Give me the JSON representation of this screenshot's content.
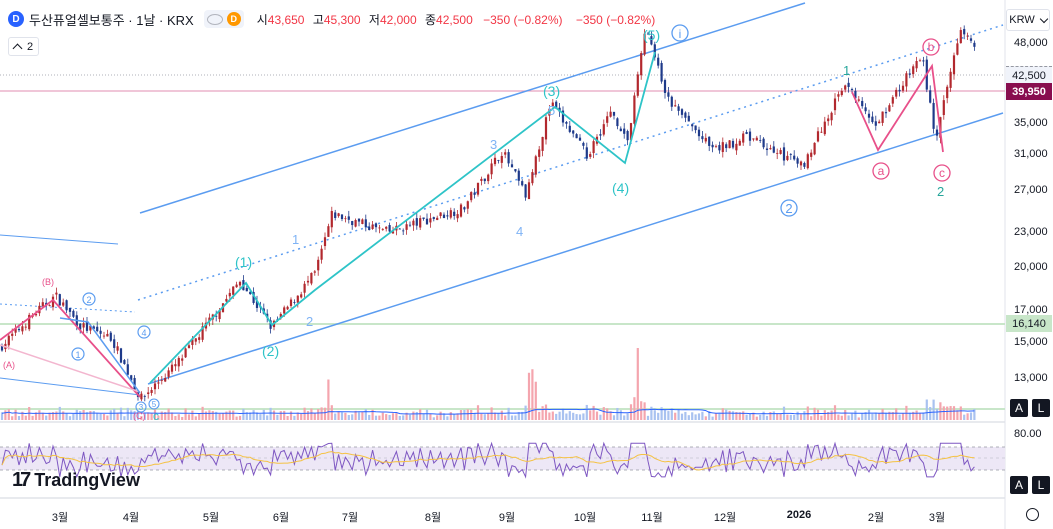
{
  "header": {
    "logo": "D",
    "symbol": "두산퓨얼셀보통주 · 1날 · KRX",
    "badge_letter": "D",
    "open_label": "시",
    "open": "43,650",
    "high_label": "고",
    "high": "45,300",
    "low_label": "저",
    "low": "42,000",
    "close_label": "종",
    "close": "42,500",
    "change": "−350 (−0.82%)",
    "change2": "−350 (−0.82%)"
  },
  "indicator_toggle": {
    "count": "2"
  },
  "currency": "KRW",
  "colors": {
    "up": "#089981",
    "down": "#f23645",
    "candle_up": "#b2282e",
    "candle_down": "#1e3a8a",
    "channel": "#5b9cf0",
    "wave_cyan": "#2ec4c8",
    "wave_pink": "#e8508a"
  },
  "price_axis": [
    "48,000",
    "35,000",
    "31,000",
    "27,000",
    "23,000",
    "20,000",
    "17,000",
    "15,000",
    "13,000"
  ],
  "rsi_axis": "80.00",
  "price_tags": {
    "last": "42,500",
    "marker": "39,950",
    "support": "16,140"
  },
  "time_axis": [
    "3월",
    "4월",
    "5월",
    "6월",
    "7월",
    "8월",
    "9월",
    "10월",
    "11월",
    "12월",
    "2026",
    "2월",
    "3월"
  ],
  "brand": "TradingView",
  "albuttons": [
    "A",
    "L"
  ],
  "chart_data": {
    "type": "candlestick",
    "currency": "KRW",
    "y_scale": "log",
    "ylim": [
      11700,
      51000
    ],
    "approx_close_path": [
      {
        "t": "2025-02-10",
        "p": 15000
      },
      {
        "t": "2025-02-25",
        "p": 17000
      },
      {
        "t": "2025-03-05",
        "p": 18000
      },
      {
        "t": "2025-03-15",
        "p": 16200
      },
      {
        "t": "2025-03-28",
        "p": 15500
      },
      {
        "t": "2025-04-09",
        "p": 12500
      },
      {
        "t": "2025-04-25",
        "p": 14300
      },
      {
        "t": "2025-05-20",
        "p": 19000
      },
      {
        "t": "2025-06-02",
        "p": 16100
      },
      {
        "t": "2025-06-20",
        "p": 19500
      },
      {
        "t": "2025-06-27",
        "p": 24000
      },
      {
        "t": "2025-07-20",
        "p": 22500
      },
      {
        "t": "2025-08-20",
        "p": 24500
      },
      {
        "t": "2025-09-05",
        "p": 30000
      },
      {
        "t": "2025-09-15",
        "p": 25500
      },
      {
        "t": "2025-09-25",
        "p": 35500
      },
      {
        "t": "2025-10-10",
        "p": 29500
      },
      {
        "t": "2025-10-20",
        "p": 34500
      },
      {
        "t": "2025-10-27",
        "p": 31000
      },
      {
        "t": "2025-11-03",
        "p": 46500
      },
      {
        "t": "2025-11-12",
        "p": 36000
      },
      {
        "t": "2025-12-01",
        "p": 30000
      },
      {
        "t": "2025-12-15",
        "p": 31500
      },
      {
        "t": "2026-01-07",
        "p": 28500
      },
      {
        "t": "2026-01-25",
        "p": 38500
      },
      {
        "t": "2026-02-05",
        "p": 32500
      },
      {
        "t": "2026-02-25",
        "p": 42000
      },
      {
        "t": "2026-03-03",
        "p": 31000
      },
      {
        "t": "2026-03-13",
        "p": 46800
      },
      {
        "t": "2026-03-19",
        "p": 42500
      }
    ],
    "horizontal_levels": [
      39950,
      16140
    ],
    "wave_labels": [
      "(1)",
      "(2)",
      "(3)",
      "(4)",
      "(5)",
      "1",
      "2",
      "3",
      "4",
      "5",
      "(A)",
      "(B)",
      "(C)",
      "a",
      "b",
      "c",
      "i"
    ],
    "rsi_upper": 80.0
  }
}
